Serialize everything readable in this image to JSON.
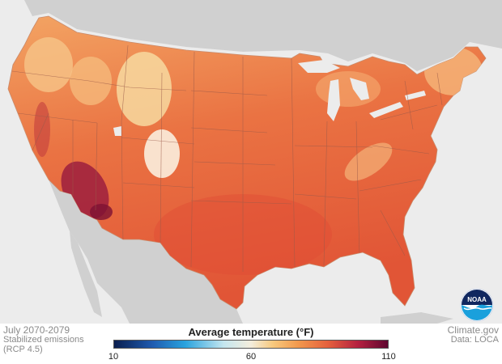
{
  "map": {
    "region": "Contiguous United States",
    "colors": {
      "background": "#ececec",
      "neighbors": "#cfcfcf",
      "water": "#ececec",
      "state_lines": "#9b5a4a",
      "base_fill": "#e4623c"
    }
  },
  "footer": {
    "period": "July 2070-2079",
    "scenario_line1": "Stabilized emissions",
    "scenario_line2": "(RCP 4.5)",
    "source": "Climate.gov",
    "data_credit": "Data: LOCA"
  },
  "legend": {
    "title": "Average temperature (°F)",
    "min": 10,
    "max": 110,
    "ticks": [
      {
        "label": "10",
        "value": 10
      },
      {
        "label": "60",
        "value": 60
      },
      {
        "label": "110",
        "value": 110
      }
    ],
    "gradient_colors": [
      "#0a1e4e",
      "#1f5bb0",
      "#2aa3de",
      "#c4e6ef",
      "#f4eddc",
      "#f7c97e",
      "#f29a4e",
      "#e5613d",
      "#b52140",
      "#5e0730"
    ]
  },
  "logo": {
    "text": "NOAA",
    "icon": "noaa-logo-icon",
    "colors": {
      "navy": "#10275f",
      "blue": "#1aa0dc",
      "white": "#ffffff"
    }
  }
}
